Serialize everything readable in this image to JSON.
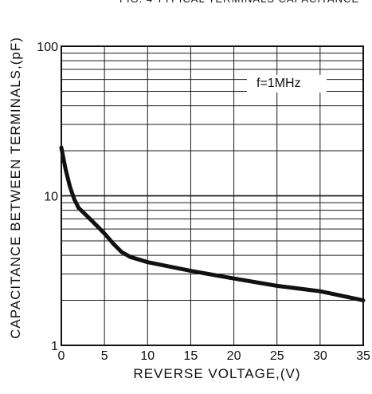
{
  "chart_data": {
    "type": "line",
    "title": "FIG. 4 TYPICAL TERMINALS CAPACITANCE",
    "xlabel": "REVERSE VOLTAGE,(V)",
    "ylabel": "CAPACITANCE BETWEEN TERMINALS,(pF)",
    "xlim": [
      0,
      35
    ],
    "ylim": [
      1,
      100
    ],
    "y_scale": "log",
    "x_ticks": [
      0,
      5,
      10,
      15,
      20,
      25,
      30,
      35
    ],
    "x_tick_labels": [
      "0",
      "5",
      "10",
      "15",
      "20",
      "25",
      "30",
      "35"
    ],
    "y_ticks": [
      1,
      10,
      100
    ],
    "y_tick_labels": [
      "1",
      "10",
      "100"
    ],
    "grid": true,
    "annotation": "f=1MHz",
    "series": [
      {
        "x": [
          0,
          0.5,
          1,
          1.5,
          2,
          3,
          4,
          5,
          6,
          7,
          8,
          10,
          15,
          20,
          25,
          30,
          35
        ],
        "y": [
          21,
          15,
          11.5,
          9.5,
          8.3,
          7.3,
          6.4,
          5.6,
          4.8,
          4.2,
          3.9,
          3.6,
          3.15,
          2.8,
          2.5,
          2.3,
          2.0
        ]
      }
    ],
    "colors": {
      "line": "#111111",
      "grid": "#1a1a1a",
      "background": "#ffffff"
    }
  }
}
